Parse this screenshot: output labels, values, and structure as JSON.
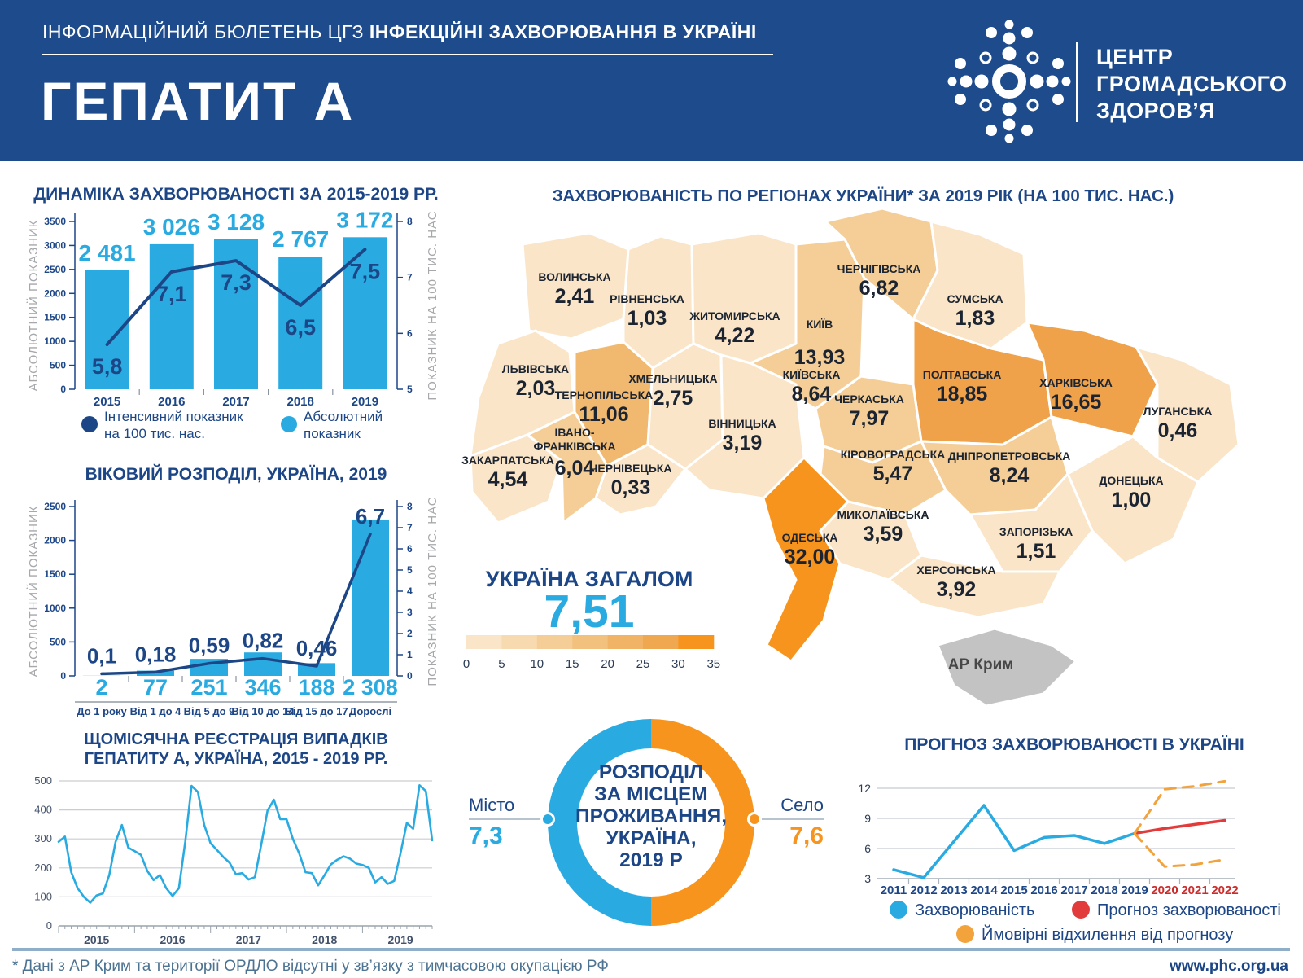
{
  "header": {
    "band_color": "#1E4B8C",
    "bulletin_regular": "ІНФОРМАЦІЙНИЙ БЮЛЕТЕНЬ ЦГЗ ",
    "bulletin_bold": "ІНФЕКЦІЙНІ ЗАХВОРЮВАННЯ В УКРАЇНІ",
    "title": "ГЕПАТИТ А",
    "org_name_lines": [
      "ЦЕНТР",
      "ГРОМАДСЬКОГО",
      "ЗДОРОВ’Я"
    ]
  },
  "colors": {
    "navy": "#1D4687",
    "light_blue": "#29ABE2",
    "orange": "#F7941E",
    "red": "#E23B3C",
    "deviation_orange": "#F2A33C",
    "axis_label_grey": "#A6A8AB",
    "grid_grey": "#C9CDD1",
    "map_text": "#1B2430",
    "crimea_grey": "#C3C3C3"
  },
  "chart_data": [
    {
      "id": "dynamics",
      "type": "bar",
      "title": "ДИНАМІКА ЗАХВОРЮВАНОСТІ ЗА 2015-2019 РР.",
      "categories": [
        "2015",
        "2016",
        "2017",
        "2018",
        "2019"
      ],
      "bar_series": {
        "name": "Абсолютний показник",
        "values": [
          2481,
          3026,
          3128,
          2767,
          3172
        ],
        "labels": [
          "2 481",
          "3 026",
          "3 128",
          "2 767",
          "3 172"
        ],
        "color": "#29ABE2"
      },
      "line_series": {
        "name": "Інтенсивний показник на 100 тис. нас.",
        "values": [
          5.8,
          7.1,
          7.3,
          6.5,
          7.5
        ],
        "labels": [
          "5,8",
          "7,1",
          "7,3",
          "6,5",
          "7,5"
        ],
        "color": "#1D4687"
      },
      "left_axis": {
        "label": "АБСОЛЮТНИЙ ПОКАЗНИК",
        "min": 0,
        "max": 3500,
        "step": 500
      },
      "right_axis": {
        "label": "ПОКАЗНИК НА 100 ТИС. НАС",
        "min": 5,
        "max": 8,
        "step": 1
      },
      "legend": [
        {
          "lines": [
            "Інтенсивний показник",
            "на 100 тис. нас."
          ],
          "color": "#1D4687"
        },
        {
          "lines": [
            "Абсолютний",
            "показник"
          ],
          "color": "#29ABE2"
        }
      ]
    },
    {
      "id": "age",
      "type": "bar",
      "title": "ВІКОВИЙ РОЗПОДІЛ, УКРАЇНА, 2019",
      "categories": [
        "До 1 року",
        "Від 1 до 4",
        "Від 5 до 9",
        "Від 10 до 14",
        "Від 15 до 17",
        "Дорослі"
      ],
      "bar_series": {
        "name": "Абсолютний показник",
        "values": [
          2,
          77,
          251,
          346,
          188,
          2308
        ],
        "labels": [
          "2",
          "77",
          "251",
          "346",
          "188",
          "2 308"
        ],
        "color": "#29ABE2"
      },
      "line_series": {
        "name": "Показник на 100 тис. нас.",
        "values": [
          0.1,
          0.18,
          0.59,
          0.82,
          0.46,
          6.7
        ],
        "labels": [
          "0,1",
          "0,18",
          "0,59",
          "0,82",
          "0,46",
          "6,7"
        ],
        "color": "#1D4687"
      },
      "left_axis": {
        "label": "АБСОЛЮТНИЙ ПОКАЗНИК",
        "min": 0,
        "max": 2500,
        "step": 500
      },
      "right_axis": {
        "label": "ПОКАЗНИК НА 100 ТИС. НАС",
        "min": 0,
        "max": 8,
        "step": 1
      }
    },
    {
      "id": "monthly",
      "type": "line",
      "title_lines": [
        "ЩОМІСЯЧНА РЕЄСТРАЦІЯ ВИПАДКІВ",
        "ГЕПАТИТУ А, УКРАЇНА, 2015 - 2019 РР."
      ],
      "years": [
        "2015",
        "2016",
        "2017",
        "2018",
        "2019"
      ],
      "values": [
        290,
        308,
        185,
        130,
        100,
        80,
        105,
        112,
        175,
        290,
        348,
        270,
        258,
        245,
        190,
        158,
        175,
        130,
        103,
        130,
        290,
        483,
        462,
        348,
        285,
        262,
        238,
        218,
        178,
        182,
        160,
        168,
        280,
        398,
        435,
        368,
        368,
        300,
        250,
        185,
        182,
        140,
        175,
        212,
        228,
        240,
        232,
        215,
        210,
        200,
        150,
        168,
        145,
        155,
        250,
        355,
        335,
        485,
        465,
        295
      ],
      "y_axis": {
        "min": 0,
        "max": 500,
        "step": 100
      },
      "color": "#29ABE2"
    },
    {
      "id": "regions-map",
      "type": "heatmap",
      "title": "ЗАХВОРЮВАНІСТЬ ПО РЕГІОНАХ УКРАЇНИ* ЗА 2019 РІК (НА 100 ТИС. НАС.)",
      "level_colors": [
        "#FAE5C8",
        "#F5CE97",
        "#F1B96F",
        "#EFA24A",
        "#F09A3B",
        "#F4972C",
        "#F7941E"
      ],
      "regions": [
        {
          "id": "volyn",
          "name": "ВОЛИНСЬКА",
          "value": "2,41",
          "level": 0
        },
        {
          "id": "rivne",
          "name": "РІВНЕНСЬКА",
          "value": "1,03",
          "level": 0
        },
        {
          "id": "zhytomyr",
          "name": "ЖИТОМИРСЬКА",
          "value": "4,22",
          "level": 0
        },
        {
          "id": "chernihiv",
          "name": "ЧЕРНІГІВСЬКА",
          "value": "6,82",
          "level": 1
        },
        {
          "id": "sumy",
          "name": "СУМСЬКА",
          "value": "1,83",
          "level": 0
        },
        {
          "id": "kyiv_city",
          "name": "КИЇВ",
          "value": "13,93",
          "level": 2
        },
        {
          "id": "kyivska",
          "name": "КИЇВСЬКА",
          "value": "8,64",
          "level": 1
        },
        {
          "id": "lviv",
          "name": "ЛЬВІВСЬКА",
          "value": "2,03",
          "level": 0
        },
        {
          "id": "ternopil",
          "name": "ТЕРНОПІЛЬСЬКА",
          "value": "11,06",
          "level": 2
        },
        {
          "id": "khmelnytska",
          "name": "ХМЕЛЬНИЦЬКА",
          "value": "2,75",
          "level": 0
        },
        {
          "id": "cherkaska",
          "name": "ЧЕРКАСЬКА",
          "value": "7,97",
          "level": 1
        },
        {
          "id": "poltavska",
          "name": "ПОЛТАВСЬКА",
          "value": "18,85",
          "level": 3
        },
        {
          "id": "kharkivska",
          "name": "ХАРКІВСЬКА",
          "value": "16,65",
          "level": 3
        },
        {
          "id": "luhanska",
          "name": "ЛУГАНСЬКА",
          "value": "0,46",
          "level": 0
        },
        {
          "id": "ivano",
          "name": "ІВАНО-\nФРАНКІВСЬКА",
          "value": "6,04",
          "level": 1
        },
        {
          "id": "vinnytska",
          "name": "ВІННИЦЬКА",
          "value": "3,19",
          "level": 0
        },
        {
          "id": "kirovohradska",
          "name": "КІРОВОГРАДСЬКА",
          "value": "5,47",
          "level": 1
        },
        {
          "id": "dnipro",
          "name": "ДНІПРОПЕТРОВСЬКА",
          "value": "8,24",
          "level": 1
        },
        {
          "id": "zakarpatska",
          "name": "ЗАКАРПАТСЬКА",
          "value": "4,54",
          "level": 0
        },
        {
          "id": "chernivetska",
          "name": "ЧЕРНІВЕЦЬКА",
          "value": "0,33",
          "level": 0
        },
        {
          "id": "donetska",
          "name": "ДОНЕЦЬКА",
          "value": "1,00",
          "level": 0
        },
        {
          "id": "odeska",
          "name": "ОДЕСЬКА",
          "value": "32,00",
          "level": 6
        },
        {
          "id": "mykolaivska",
          "name": "МИКОЛАЇВСЬКА",
          "value": "3,59",
          "level": 0
        },
        {
          "id": "zaporizka",
          "name": "ЗАПОРІЗЬКА",
          "value": "1,51",
          "level": 0
        },
        {
          "id": "khersonska",
          "name": "ХЕРСОНСЬКА",
          "value": "3,92",
          "level": 0
        }
      ],
      "crimea": {
        "name": "АР Крим",
        "color": "#C3C3C3"
      },
      "total": {
        "label": "УКРАЇНА ЗАГАЛОМ",
        "value": "7,51"
      },
      "scale": {
        "tick_labels": [
          "0",
          "5",
          "10",
          "15",
          "20",
          "25",
          "30",
          "35"
        ],
        "segment_colors": [
          "#FAE5C8",
          "#F8DAB0",
          "#F5CE97",
          "#F3C17E",
          "#F1B467",
          "#EFA750",
          "#F7941E"
        ]
      }
    },
    {
      "id": "residence",
      "type": "pie",
      "center_lines": [
        "РОЗПОДІЛ",
        "ЗА МІСЦЕМ",
        "ПРОЖИВАННЯ,",
        "УКРАЇНА,",
        "2019 Р"
      ],
      "slices": [
        {
          "label": "Місто",
          "value": "7,3",
          "color": "#29ABE2"
        },
        {
          "label": "Село",
          "value": "7,6",
          "color": "#F7941E"
        }
      ]
    },
    {
      "id": "forecast",
      "type": "line",
      "title": "ПРОГНОЗ ЗАХВОРЮВАНОСТІ В УКРАЇНІ",
      "years": [
        "2011",
        "2012",
        "2013",
        "2014",
        "2015",
        "2016",
        "2017",
        "2018",
        "2019",
        "2020",
        "2021",
        "2022"
      ],
      "forecast_year_start_index": 9,
      "actual": {
        "name": "Захворюваність",
        "color": "#29ABE2",
        "values": [
          3.9,
          3.1,
          6.7,
          10.3,
          5.8,
          7.1,
          7.3,
          6.5,
          7.5
        ]
      },
      "forecast": {
        "name": "Прогноз захворюваності",
        "color": "#E23B3C",
        "start_index": 8,
        "values": [
          7.5,
          8.0,
          8.4,
          8.8
        ]
      },
      "deviation": {
        "name": "Ймовірні відхилення від прогнозу",
        "color": "#F2A33C",
        "start_index": 8,
        "upper": [
          7.5,
          11.9,
          12.2,
          12.7
        ],
        "lower": [
          7.5,
          4.2,
          4.4,
          4.9
        ]
      },
      "y_axis": {
        "min": 3,
        "max": 12,
        "step": 3
      },
      "legend": [
        {
          "label": "Захворюваність",
          "color": "#29ABE2"
        },
        {
          "label": "Прогноз захворюваності",
          "color": "#E23B3C"
        },
        {
          "label": "Ймовірні відхилення від прогнозу",
          "color": "#F2A33C"
        }
      ]
    }
  ],
  "footer": {
    "note": "* Дані з АР Крим та території ОРДЛО відсутні у зв’язку з тимчасовою окупацією РФ",
    "url": "www.phc.org.ua"
  }
}
